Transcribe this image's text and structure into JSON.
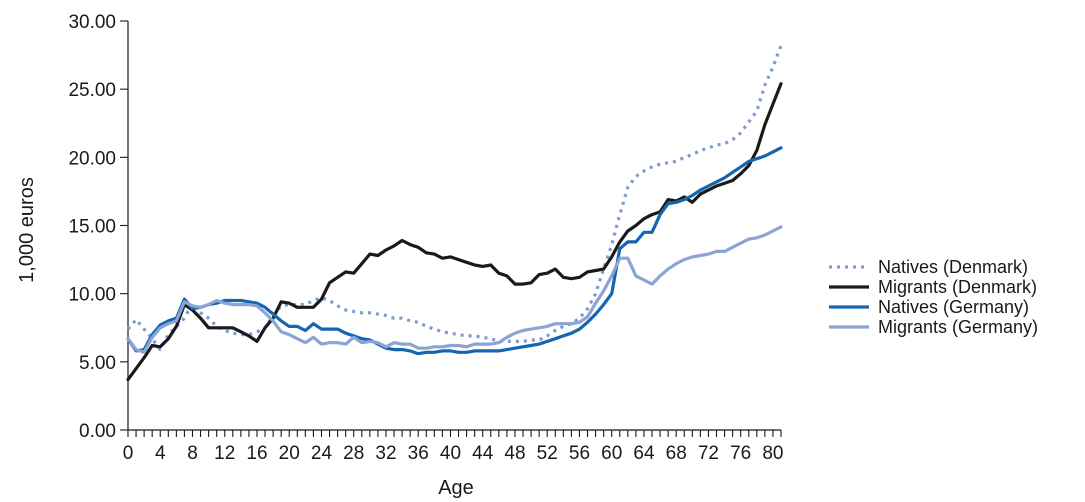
{
  "chart_data": {
    "type": "line",
    "xlabel": "Age",
    "ylabel": "1,000 euros",
    "xlim": [
      0,
      81
    ],
    "ylim": [
      0,
      30
    ],
    "x_ticks": [
      0,
      4,
      8,
      12,
      16,
      20,
      24,
      28,
      32,
      36,
      40,
      44,
      48,
      52,
      56,
      60,
      64,
      68,
      72,
      76,
      80
    ],
    "y_ticks": [
      "0.00",
      "5.00",
      "10.00",
      "15.00",
      "20.00",
      "25.00",
      "30.00"
    ],
    "legend_position": "right",
    "series": [
      {
        "name": "Natives (Denmark)",
        "color": "#7d9bd0",
        "style": "dotted",
        "points": [
          [
            0,
            7.4
          ],
          [
            1,
            8.1
          ],
          [
            2,
            7.4
          ],
          [
            3,
            6.7
          ],
          [
            4,
            5.9
          ],
          [
            5,
            7.0
          ],
          [
            6,
            7.6
          ],
          [
            7,
            8.2
          ],
          [
            8,
            9.3
          ],
          [
            9,
            8.6
          ],
          [
            10,
            8.2
          ],
          [
            11,
            7.6
          ],
          [
            12,
            7.3
          ],
          [
            13,
            7.1
          ],
          [
            14,
            7.0
          ],
          [
            15,
            7.0
          ],
          [
            16,
            7.2
          ],
          [
            17,
            7.5
          ],
          [
            18,
            8.4
          ],
          [
            19,
            9.1
          ],
          [
            20,
            9.2
          ],
          [
            21,
            9.2
          ],
          [
            22,
            9.2
          ],
          [
            23,
            9.5
          ],
          [
            24,
            9.7
          ],
          [
            25,
            9.5
          ],
          [
            26,
            9.1
          ],
          [
            27,
            8.8
          ],
          [
            28,
            8.7
          ],
          [
            29,
            8.6
          ],
          [
            30,
            8.6
          ],
          [
            31,
            8.5
          ],
          [
            32,
            8.4
          ],
          [
            33,
            8.2
          ],
          [
            34,
            8.2
          ],
          [
            35,
            8.0
          ],
          [
            36,
            7.9
          ],
          [
            37,
            7.6
          ],
          [
            38,
            7.4
          ],
          [
            39,
            7.2
          ],
          [
            40,
            7.1
          ],
          [
            41,
            7.0
          ],
          [
            42,
            6.9
          ],
          [
            43,
            6.9
          ],
          [
            44,
            6.8
          ],
          [
            45,
            6.7
          ],
          [
            46,
            6.5
          ],
          [
            47,
            6.5
          ],
          [
            48,
            6.5
          ],
          [
            49,
            6.5
          ],
          [
            50,
            6.6
          ],
          [
            51,
            6.6
          ],
          [
            52,
            6.9
          ],
          [
            53,
            7.3
          ],
          [
            54,
            7.6
          ],
          [
            55,
            7.8
          ],
          [
            56,
            8.2
          ],
          [
            57,
            8.9
          ],
          [
            58,
            10.0
          ],
          [
            59,
            11.8
          ],
          [
            60,
            13.6
          ],
          [
            61,
            15.8
          ],
          [
            62,
            17.8
          ],
          [
            63,
            18.6
          ],
          [
            64,
            19.0
          ],
          [
            65,
            19.3
          ],
          [
            66,
            19.5
          ],
          [
            67,
            19.6
          ],
          [
            68,
            19.7
          ],
          [
            69,
            20.0
          ],
          [
            70,
            20.2
          ],
          [
            71,
            20.5
          ],
          [
            72,
            20.7
          ],
          [
            73,
            20.9
          ],
          [
            74,
            21.0
          ],
          [
            75,
            21.3
          ],
          [
            76,
            21.8
          ],
          [
            77,
            22.6
          ],
          [
            78,
            23.4
          ],
          [
            79,
            25.3
          ],
          [
            80,
            26.6
          ],
          [
            81,
            28.2
          ]
        ]
      },
      {
        "name": "Migrants (Denmark)",
        "color": "#1a1a1a",
        "style": "solid",
        "points": [
          [
            0,
            3.7
          ],
          [
            1,
            4.5
          ],
          [
            2,
            5.3
          ],
          [
            3,
            6.2
          ],
          [
            4,
            6.1
          ],
          [
            5,
            6.7
          ],
          [
            6,
            7.6
          ],
          [
            7,
            9.2
          ],
          [
            8,
            8.8
          ],
          [
            9,
            8.2
          ],
          [
            10,
            7.5
          ],
          [
            11,
            7.5
          ],
          [
            12,
            7.5
          ],
          [
            13,
            7.5
          ],
          [
            14,
            7.2
          ],
          [
            15,
            6.9
          ],
          [
            16,
            6.5
          ],
          [
            17,
            7.5
          ],
          [
            18,
            8.2
          ],
          [
            19,
            9.4
          ],
          [
            20,
            9.3
          ],
          [
            21,
            9.0
          ],
          [
            22,
            9.0
          ],
          [
            23,
            9.0
          ],
          [
            24,
            9.6
          ],
          [
            25,
            10.8
          ],
          [
            26,
            11.2
          ],
          [
            27,
            11.6
          ],
          [
            28,
            11.5
          ],
          [
            29,
            12.2
          ],
          [
            30,
            12.9
          ],
          [
            31,
            12.8
          ],
          [
            32,
            13.2
          ],
          [
            33,
            13.5
          ],
          [
            34,
            13.9
          ],
          [
            35,
            13.6
          ],
          [
            36,
            13.4
          ],
          [
            37,
            13.0
          ],
          [
            38,
            12.9
          ],
          [
            39,
            12.6
          ],
          [
            40,
            12.7
          ],
          [
            41,
            12.5
          ],
          [
            42,
            12.3
          ],
          [
            43,
            12.1
          ],
          [
            44,
            12.0
          ],
          [
            45,
            12.1
          ],
          [
            46,
            11.5
          ],
          [
            47,
            11.3
          ],
          [
            48,
            10.7
          ],
          [
            49,
            10.7
          ],
          [
            50,
            10.8
          ],
          [
            51,
            11.4
          ],
          [
            52,
            11.5
          ],
          [
            53,
            11.8
          ],
          [
            54,
            11.2
          ],
          [
            55,
            11.1
          ],
          [
            56,
            11.2
          ],
          [
            57,
            11.6
          ],
          [
            58,
            11.7
          ],
          [
            59,
            11.8
          ],
          [
            60,
            12.7
          ],
          [
            61,
            13.8
          ],
          [
            62,
            14.6
          ],
          [
            63,
            15.0
          ],
          [
            64,
            15.5
          ],
          [
            65,
            15.8
          ],
          [
            66,
            16.0
          ],
          [
            67,
            16.9
          ],
          [
            68,
            16.8
          ],
          [
            69,
            17.1
          ],
          [
            70,
            16.7
          ],
          [
            71,
            17.3
          ],
          [
            72,
            17.6
          ],
          [
            73,
            17.9
          ],
          [
            74,
            18.1
          ],
          [
            75,
            18.3
          ],
          [
            76,
            18.8
          ],
          [
            77,
            19.4
          ],
          [
            78,
            20.5
          ],
          [
            79,
            22.4
          ],
          [
            80,
            23.9
          ],
          [
            81,
            25.4
          ]
        ]
      },
      {
        "name": "Natives (Germany)",
        "color": "#1565b0",
        "style": "solid",
        "points": [
          [
            0,
            6.7
          ],
          [
            1,
            5.8
          ],
          [
            2,
            5.9
          ],
          [
            3,
            7.0
          ],
          [
            4,
            7.7
          ],
          [
            5,
            8.0
          ],
          [
            6,
            8.2
          ],
          [
            7,
            9.6
          ],
          [
            8,
            8.9
          ],
          [
            9,
            9.0
          ],
          [
            10,
            9.2
          ],
          [
            11,
            9.3
          ],
          [
            12,
            9.5
          ],
          [
            13,
            9.5
          ],
          [
            14,
            9.5
          ],
          [
            15,
            9.4
          ],
          [
            16,
            9.3
          ],
          [
            17,
            9.0
          ],
          [
            18,
            8.5
          ],
          [
            19,
            8.0
          ],
          [
            20,
            7.6
          ],
          [
            21,
            7.6
          ],
          [
            22,
            7.3
          ],
          [
            23,
            7.8
          ],
          [
            24,
            7.4
          ],
          [
            25,
            7.4
          ],
          [
            26,
            7.4
          ],
          [
            27,
            7.1
          ],
          [
            28,
            6.9
          ],
          [
            29,
            6.7
          ],
          [
            30,
            6.6
          ],
          [
            31,
            6.3
          ],
          [
            32,
            6.0
          ],
          [
            33,
            5.9
          ],
          [
            34,
            5.9
          ],
          [
            35,
            5.8
          ],
          [
            36,
            5.6
          ],
          [
            37,
            5.7
          ],
          [
            38,
            5.7
          ],
          [
            39,
            5.8
          ],
          [
            40,
            5.8
          ],
          [
            41,
            5.7
          ],
          [
            42,
            5.7
          ],
          [
            43,
            5.8
          ],
          [
            44,
            5.8
          ],
          [
            45,
            5.8
          ],
          [
            46,
            5.8
          ],
          [
            47,
            5.9
          ],
          [
            48,
            6.0
          ],
          [
            49,
            6.1
          ],
          [
            50,
            6.2
          ],
          [
            51,
            6.3
          ],
          [
            52,
            6.5
          ],
          [
            53,
            6.7
          ],
          [
            54,
            6.9
          ],
          [
            55,
            7.1
          ],
          [
            56,
            7.4
          ],
          [
            57,
            7.9
          ],
          [
            58,
            8.5
          ],
          [
            59,
            9.2
          ],
          [
            60,
            10.0
          ],
          [
            61,
            13.3
          ],
          [
            62,
            13.8
          ],
          [
            63,
            13.8
          ],
          [
            64,
            14.5
          ],
          [
            65,
            14.5
          ],
          [
            66,
            15.8
          ],
          [
            67,
            16.6
          ],
          [
            68,
            16.7
          ],
          [
            69,
            16.9
          ],
          [
            70,
            17.2
          ],
          [
            71,
            17.6
          ],
          [
            72,
            17.9
          ],
          [
            73,
            18.2
          ],
          [
            74,
            18.5
          ],
          [
            75,
            18.9
          ],
          [
            76,
            19.3
          ],
          [
            77,
            19.7
          ],
          [
            78,
            19.9
          ],
          [
            79,
            20.1
          ],
          [
            80,
            20.4
          ],
          [
            81,
            20.7
          ]
        ]
      },
      {
        "name": "Migrants (Germany)",
        "color": "#8aa4d6",
        "style": "solid",
        "points": [
          [
            0,
            6.7
          ],
          [
            1,
            5.9
          ],
          [
            2,
            5.7
          ],
          [
            3,
            6.8
          ],
          [
            4,
            7.5
          ],
          [
            5,
            7.8
          ],
          [
            6,
            8.0
          ],
          [
            7,
            9.4
          ],
          [
            8,
            9.1
          ],
          [
            9,
            9.0
          ],
          [
            10,
            9.2
          ],
          [
            11,
            9.5
          ],
          [
            12,
            9.3
          ],
          [
            13,
            9.2
          ],
          [
            14,
            9.2
          ],
          [
            15,
            9.2
          ],
          [
            16,
            9.1
          ],
          [
            17,
            8.6
          ],
          [
            18,
            8.0
          ],
          [
            19,
            7.2
          ],
          [
            20,
            7.0
          ],
          [
            21,
            6.7
          ],
          [
            22,
            6.4
          ],
          [
            23,
            6.8
          ],
          [
            24,
            6.3
          ],
          [
            25,
            6.4
          ],
          [
            26,
            6.4
          ],
          [
            27,
            6.3
          ],
          [
            28,
            6.8
          ],
          [
            29,
            6.4
          ],
          [
            30,
            6.5
          ],
          [
            31,
            6.4
          ],
          [
            32,
            6.1
          ],
          [
            33,
            6.4
          ],
          [
            34,
            6.3
          ],
          [
            35,
            6.3
          ],
          [
            36,
            6.0
          ],
          [
            37,
            6.0
          ],
          [
            38,
            6.1
          ],
          [
            39,
            6.1
          ],
          [
            40,
            6.2
          ],
          [
            41,
            6.2
          ],
          [
            42,
            6.1
          ],
          [
            43,
            6.3
          ],
          [
            44,
            6.3
          ],
          [
            45,
            6.3
          ],
          [
            46,
            6.4
          ],
          [
            47,
            6.8
          ],
          [
            48,
            7.1
          ],
          [
            49,
            7.3
          ],
          [
            50,
            7.4
          ],
          [
            51,
            7.5
          ],
          [
            52,
            7.6
          ],
          [
            53,
            7.8
          ],
          [
            54,
            7.8
          ],
          [
            55,
            7.8
          ],
          [
            56,
            7.9
          ],
          [
            57,
            8.3
          ],
          [
            58,
            9.3
          ],
          [
            59,
            10.2
          ],
          [
            60,
            11.3
          ],
          [
            61,
            12.6
          ],
          [
            62,
            12.6
          ],
          [
            63,
            11.3
          ],
          [
            64,
            11.0
          ],
          [
            65,
            10.7
          ],
          [
            66,
            11.3
          ],
          [
            67,
            11.8
          ],
          [
            68,
            12.2
          ],
          [
            69,
            12.5
          ],
          [
            70,
            12.7
          ],
          [
            71,
            12.8
          ],
          [
            72,
            12.9
          ],
          [
            73,
            13.1
          ],
          [
            74,
            13.1
          ],
          [
            75,
            13.4
          ],
          [
            76,
            13.7
          ],
          [
            77,
            14.0
          ],
          [
            78,
            14.1
          ],
          [
            79,
            14.3
          ],
          [
            80,
            14.6
          ],
          [
            81,
            14.9
          ]
        ]
      }
    ]
  }
}
